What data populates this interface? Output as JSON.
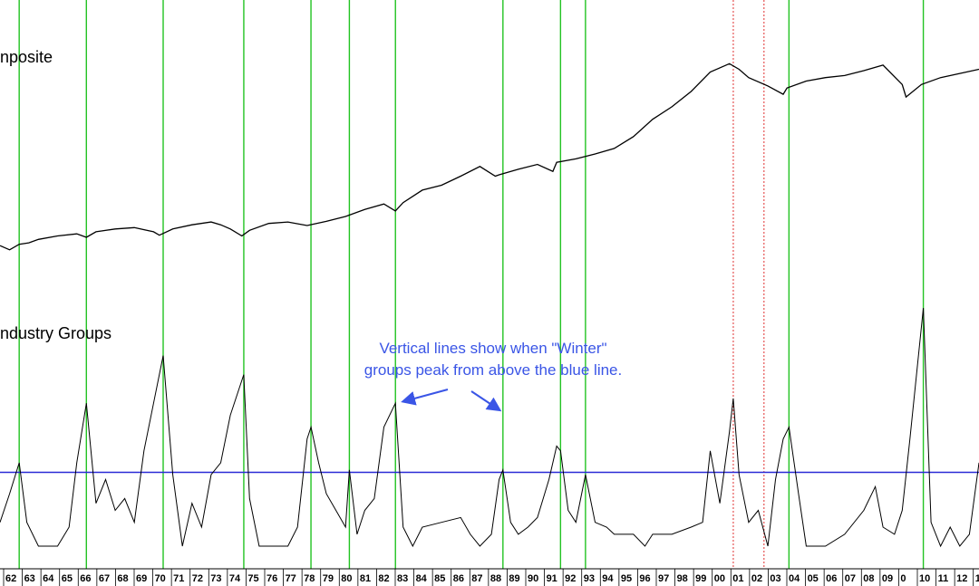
{
  "chart_data": [
    {
      "type": "line",
      "title": "nposite",
      "x_unit": "year",
      "xlim": [
        1962,
        2013
      ],
      "series": [
        {
          "x": [
            1962,
            1962.5,
            1963,
            1963.5,
            1964,
            1965,
            1966,
            1966.5,
            1967,
            1968,
            1969,
            1970,
            1970.3,
            1971,
            1972,
            1973,
            1973.5,
            1974,
            1974.6,
            1975,
            1976,
            1977,
            1978,
            1979,
            1980,
            1981,
            1982,
            1982.6,
            1983,
            1984,
            1985,
            1986,
            1987,
            1987.8,
            1988,
            1989,
            1990,
            1990.8,
            1991,
            1992,
            1993,
            1994,
            1995,
            1996,
            1997,
            1998,
            1999,
            2000,
            2000.5,
            2001,
            2002,
            2002.8,
            2003,
            2004,
            2005,
            2006,
            2007,
            2008,
            2009,
            2009.2,
            2010,
            2011,
            2012,
            2013
          ],
          "y": [
            58,
            52,
            60,
            62,
            67,
            72,
            75,
            70,
            78,
            82,
            84,
            78,
            73,
            82,
            88,
            92,
            88,
            82,
            72,
            80,
            90,
            92,
            87,
            93,
            100,
            110,
            118,
            108,
            120,
            138,
            145,
            158,
            172,
            158,
            160,
            168,
            175,
            165,
            178,
            183,
            190,
            198,
            215,
            240,
            258,
            280,
            308,
            320,
            312,
            300,
            288,
            276,
            285,
            295,
            300,
            303,
            310,
            318,
            290,
            272,
            290,
            300,
            306,
            312
          ]
        }
      ]
    },
    {
      "type": "line",
      "title": "ndustry Groups",
      "x_unit": "year",
      "xlim": [
        1962,
        2013
      ],
      "ylim": [
        0,
        100
      ],
      "reference_line": 31,
      "vertical_markers": [
        1963,
        1966.5,
        1970.5,
        1974.7,
        1978.2,
        1980.2,
        1982.6,
        1988.2,
        1991.2,
        1992.5,
        2003.1,
        2010.1
      ],
      "dashed_markers": [
        2000.2,
        2001.8
      ],
      "annotation": {
        "line1": "Vertical lines show when \"Winter\"",
        "line2": "groups peak from above the blue line."
      },
      "series": [
        {
          "x": [
            1962,
            1962.5,
            1963,
            1963.4,
            1964,
            1965,
            1965.6,
            1966,
            1966.5,
            1967,
            1967.5,
            1968,
            1968.5,
            1969,
            1969.5,
            1970,
            1970.5,
            1971,
            1971.5,
            1972,
            1972.5,
            1973,
            1973.5,
            1974,
            1974.7,
            1975,
            1975.5,
            1976,
            1977,
            1977.5,
            1978,
            1978.2,
            1978.6,
            1979,
            1979.5,
            1980,
            1980.2,
            1980.6,
            1981,
            1981.5,
            1982,
            1982.6,
            1983,
            1983.5,
            1984,
            1985,
            1986,
            1986.5,
            1987,
            1987.6,
            1988,
            1988.2,
            1988.6,
            1989,
            1989.5,
            1990,
            1990.6,
            1991,
            1991.2,
            1991.6,
            1992,
            1992.5,
            1993,
            1993.6,
            1994,
            1995,
            1995.6,
            1996,
            1997,
            1998,
            1998.6,
            1999,
            1999.5,
            2000,
            2000.2,
            2000.5,
            2001,
            2001.5,
            2002,
            2002.4,
            2002.8,
            2003.1,
            2003.6,
            2004,
            2005,
            2006,
            2007,
            2007.6,
            2008,
            2008.6,
            2009,
            2009.4,
            2010.1,
            2010.5,
            2011,
            2011.5,
            2012,
            2012.5,
            2013
          ],
          "y": [
            10,
            22,
            35,
            10,
            0,
            0,
            8,
            35,
            60,
            18,
            28,
            15,
            20,
            10,
            40,
            60,
            80,
            30,
            0,
            18,
            8,
            30,
            35,
            55,
            72,
            20,
            0,
            0,
            0,
            8,
            45,
            50,
            35,
            22,
            15,
            8,
            32,
            5,
            15,
            20,
            50,
            60,
            8,
            0,
            8,
            10,
            12,
            5,
            0,
            5,
            28,
            32,
            10,
            5,
            8,
            12,
            28,
            42,
            40,
            15,
            10,
            30,
            10,
            8,
            5,
            5,
            0,
            5,
            5,
            8,
            10,
            40,
            18,
            48,
            62,
            30,
            10,
            15,
            0,
            28,
            45,
            50,
            22,
            0,
            0,
            5,
            15,
            25,
            8,
            5,
            15,
            45,
            100,
            10,
            0,
            8,
            0,
            5,
            35
          ]
        }
      ]
    }
  ],
  "x_axis": {
    "tick_labels": [
      "62",
      "63",
      "64",
      "65",
      "66",
      "67",
      "68",
      "69",
      "70",
      "71",
      "72",
      "73",
      "74",
      "75",
      "76",
      "77",
      "78",
      "79",
      "80",
      "81",
      "82",
      "83",
      "84",
      "85",
      "86",
      "87",
      "88",
      "89",
      "90",
      "91",
      "92",
      "93",
      "94",
      "95",
      "96",
      "97",
      "98",
      "99",
      "00",
      "01",
      "02",
      "03",
      "04",
      "05",
      "06",
      "07",
      "08",
      "09",
      "0",
      "10",
      "11",
      "12",
      "1"
    ]
  },
  "colors": {
    "composite_line": "#000000",
    "oscillator_line": "#000000",
    "vertical_marker": "#22c322",
    "dashed_marker": "#e03030",
    "reference_line": "#2a2ad6",
    "annotation": "#3a55e6"
  }
}
